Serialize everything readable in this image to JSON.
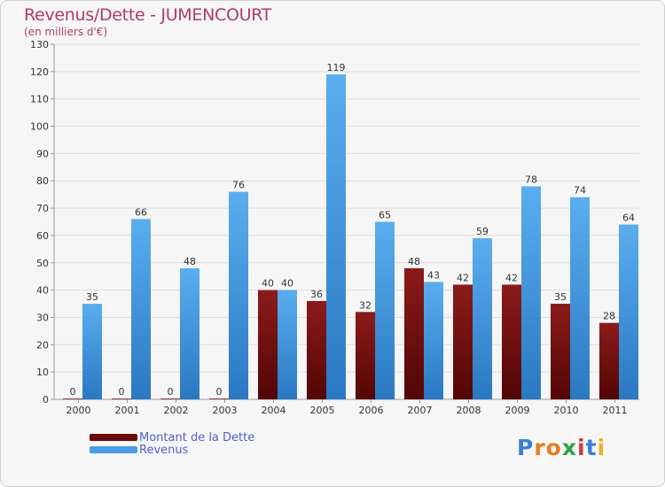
{
  "chart_data": {
    "type": "bar",
    "title": "Revenus/Dette - JUMENCOURT",
    "subtitle": "(en milliers d'€)",
    "categories": [
      "2000",
      "2001",
      "2002",
      "2003",
      "2004",
      "2005",
      "2006",
      "2007",
      "2008",
      "2009",
      "2010",
      "2011"
    ],
    "series": [
      {
        "name": "Montant de la Dette",
        "color": "#6b0a0a",
        "values": [
          0,
          0,
          0,
          0,
          40,
          36,
          32,
          48,
          42,
          42,
          35,
          28
        ]
      },
      {
        "name": "Revenus",
        "color": "#4a9ee6",
        "values": [
          35,
          66,
          48,
          76,
          40,
          119,
          65,
          43,
          59,
          78,
          74,
          64
        ]
      }
    ],
    "ylim": [
      0,
      130
    ],
    "yticks": [
      0,
      10,
      20,
      30,
      40,
      50,
      60,
      70,
      80,
      90,
      100,
      110,
      120,
      130
    ],
    "grid": true,
    "legend_position": "bottom-left"
  },
  "logo": {
    "text": "Proxiti",
    "letters": [
      "P",
      "r",
      "o",
      "x",
      "i",
      "t",
      "i"
    ],
    "colors": [
      "#3a7fd8",
      "#e87d1e",
      "#e87d1e",
      "#2ea34a",
      "#d23b3b",
      "#3a7fd8",
      "#e8b21e"
    ]
  }
}
